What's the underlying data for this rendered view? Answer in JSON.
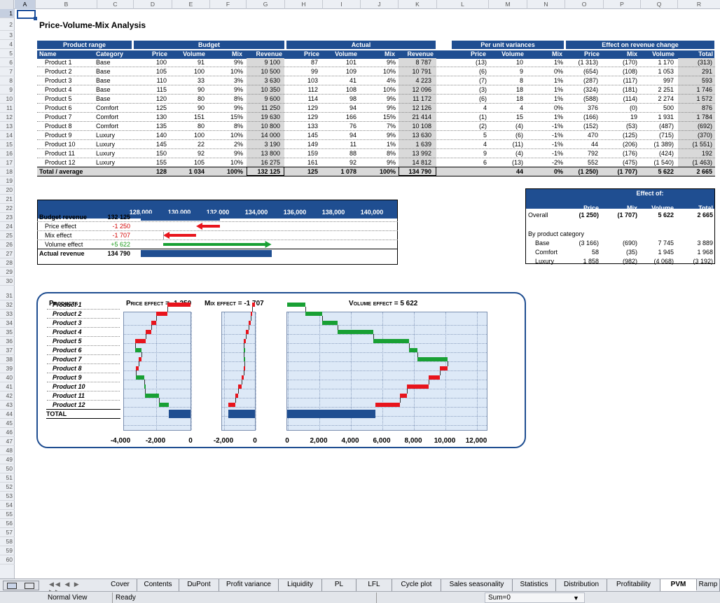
{
  "columns": [
    "A",
    "B",
    "C",
    "D",
    "E",
    "F",
    "G",
    "H",
    "I",
    "J",
    "K",
    "L",
    "M",
    "N",
    "O",
    "P",
    "Q",
    "R"
  ],
  "rows": [
    "1",
    "2",
    "3",
    "4",
    "5",
    "6",
    "7",
    "8",
    "9",
    "10",
    "11",
    "12",
    "13",
    "14",
    "15",
    "16",
    "17",
    "18",
    "19",
    "20",
    "21",
    "22",
    "23",
    "24",
    "25",
    "26",
    "27",
    "28",
    "29",
    "30",
    "31",
    "32",
    "33",
    "34",
    "35",
    "36",
    "37",
    "38",
    "39",
    "40",
    "41",
    "42",
    "43",
    "44",
    "45",
    "46",
    "47",
    "48",
    "49",
    "50",
    "51",
    "52",
    "53",
    "54",
    "55",
    "56",
    "57",
    "58",
    "59",
    "60"
  ],
  "title": "Price-Volume-Mix Analysis",
  "groups": {
    "product_range": "Product range",
    "budget": "Budget",
    "actual": "Actual",
    "per_unit": "Per unit variances",
    "effect": "Effect on revenue change"
  },
  "headers": {
    "name": "Name",
    "category": "Category",
    "price": "Price",
    "volume": "Volume",
    "mix": "Mix",
    "revenue": "Revenue",
    "total": "Total"
  },
  "table": [
    [
      "Product 1",
      "Base",
      "100",
      "91",
      "9%",
      "9 100",
      "87",
      "101",
      "9%",
      "8 787",
      "(13)",
      "10",
      "1%",
      "(1 313)",
      "(170)",
      "1 170",
      "(313)"
    ],
    [
      "Product 2",
      "Base",
      "105",
      "100",
      "10%",
      "10 500",
      "99",
      "109",
      "10%",
      "10 791",
      "(6)",
      "9",
      "0%",
      "(654)",
      "(108)",
      "1 053",
      "291"
    ],
    [
      "Product 3",
      "Base",
      "110",
      "33",
      "3%",
      "3 630",
      "103",
      "41",
      "4%",
      "4 223",
      "(7)",
      "8",
      "1%",
      "(287)",
      "(117)",
      "997",
      "593"
    ],
    [
      "Product 4",
      "Base",
      "115",
      "90",
      "9%",
      "10 350",
      "112",
      "108",
      "10%",
      "12 096",
      "(3)",
      "18",
      "1%",
      "(324)",
      "(181)",
      "2 251",
      "1 746"
    ],
    [
      "Product 5",
      "Base",
      "120",
      "80",
      "8%",
      "9 600",
      "114",
      "98",
      "9%",
      "11 172",
      "(6)",
      "18",
      "1%",
      "(588)",
      "(114)",
      "2 274",
      "1 572"
    ],
    [
      "Product 6",
      "Comfort",
      "125",
      "90",
      "9%",
      "11 250",
      "129",
      "94",
      "9%",
      "12 126",
      "4",
      "4",
      "0%",
      "376",
      "(0)",
      "500",
      "876"
    ],
    [
      "Product 7",
      "Comfort",
      "130",
      "151",
      "15%",
      "19 630",
      "129",
      "166",
      "15%",
      "21 414",
      "(1)",
      "15",
      "1%",
      "(166)",
      "19",
      "1 931",
      "1 784"
    ],
    [
      "Product 8",
      "Comfort",
      "135",
      "80",
      "8%",
      "10 800",
      "133",
      "76",
      "7%",
      "10 108",
      "(2)",
      "(4)",
      "-1%",
      "(152)",
      "(53)",
      "(487)",
      "(692)"
    ],
    [
      "Product 9",
      "Luxury",
      "140",
      "100",
      "10%",
      "14 000",
      "145",
      "94",
      "9%",
      "13 630",
      "5",
      "(6)",
      "-1%",
      "470",
      "(125)",
      "(715)",
      "(370)"
    ],
    [
      "Product 10",
      "Luxury",
      "145",
      "22",
      "2%",
      "3 190",
      "149",
      "11",
      "1%",
      "1 639",
      "4",
      "(11)",
      "-1%",
      "44",
      "(206)",
      "(1 389)",
      "(1 551)"
    ],
    [
      "Product 11",
      "Luxury",
      "150",
      "92",
      "9%",
      "13 800",
      "159",
      "88",
      "8%",
      "13 992",
      "9",
      "(4)",
      "-1%",
      "792",
      "(176)",
      "(424)",
      "192"
    ],
    [
      "Product 12",
      "Luxury",
      "155",
      "105",
      "10%",
      "16 275",
      "161",
      "92",
      "9%",
      "14 812",
      "6",
      "(13)",
      "-2%",
      "552",
      "(475)",
      "(1 540)",
      "(1 463)"
    ]
  ],
  "total_row": [
    "Total / average",
    "",
    "128",
    "1 034",
    "100%",
    "132 125",
    "125",
    "1 078",
    "100%",
    "134 790",
    "",
    "44",
    "0%",
    "(1 250)",
    "(1 707)",
    "5 622",
    "2 665"
  ],
  "bridge": {
    "axis": [
      "128,000",
      "130,000",
      "132,000",
      "134,000",
      "136,000",
      "138,000",
      "140,000"
    ],
    "rows": [
      {
        "label": "Budget revenue",
        "value": "132 125"
      },
      {
        "label": "Price effect",
        "value": "-1 250"
      },
      {
        "label": "Mix effect",
        "value": "-1 707"
      },
      {
        "label": "Volume effect",
        "value": "+5 622"
      },
      {
        "label": "Actual revenue",
        "value": "134 790"
      }
    ]
  },
  "effect_box": {
    "title": "Effect of:",
    "cols": [
      "Price",
      "Mix",
      "Volume",
      "Total"
    ],
    "overall": {
      "label": "Overall",
      "vals": [
        "(1 250)",
        "(1 707)",
        "5 622",
        "2 665"
      ]
    },
    "by_cat_label": "By product category",
    "cats": [
      {
        "label": "Base",
        "vals": [
          "(3 166)",
          "(690)",
          "7 745",
          "3 889"
        ]
      },
      {
        "label": "Comfort",
        "vals": [
          "58",
          "(35)",
          "1 945",
          "1 968"
        ]
      },
      {
        "label": "Luxury",
        "vals": [
          "1 858",
          "(982)",
          "(4 068)",
          "(3 192)"
        ]
      }
    ]
  },
  "waterfall": {
    "products_label": "Products",
    "price_label": "Price effect = -1 250",
    "mix_label": "Mix effect = -1 707",
    "volume_label": "Volume effect = 5 622",
    "items": [
      "Product 1",
      "Product 2",
      "Product 3",
      "Product 4",
      "Product 5",
      "Product 6",
      "Product 7",
      "Product 8",
      "Product 9",
      "Product 10",
      "Product 11",
      "Product 12"
    ],
    "total_label": "TOTAL",
    "axis_price": [
      "-4,000",
      "-2,000",
      "0"
    ],
    "axis_mix": [
      "-2,000",
      "0"
    ],
    "axis_volume": [
      "0",
      "2,000",
      "4,000",
      "6,000",
      "8,000",
      "10,000",
      "12,000"
    ]
  },
  "tabs": [
    "Cover",
    "Contents",
    "DuPont",
    "Profit variance",
    "Liquidity",
    "PL",
    "LFL",
    "Cycle plot",
    "Sales seasonality",
    "Statistics",
    "Distribution",
    "Profitability",
    "PVM",
    "Ramp"
  ],
  "active_tab": "PVM",
  "status": {
    "view": "Normal View",
    "state": "Ready",
    "sum": "Sum=0"
  },
  "colors": {
    "header": "#1f4e91",
    "negative": "#e8141c",
    "positive": "#18a034",
    "total": "#1f4e91"
  }
}
